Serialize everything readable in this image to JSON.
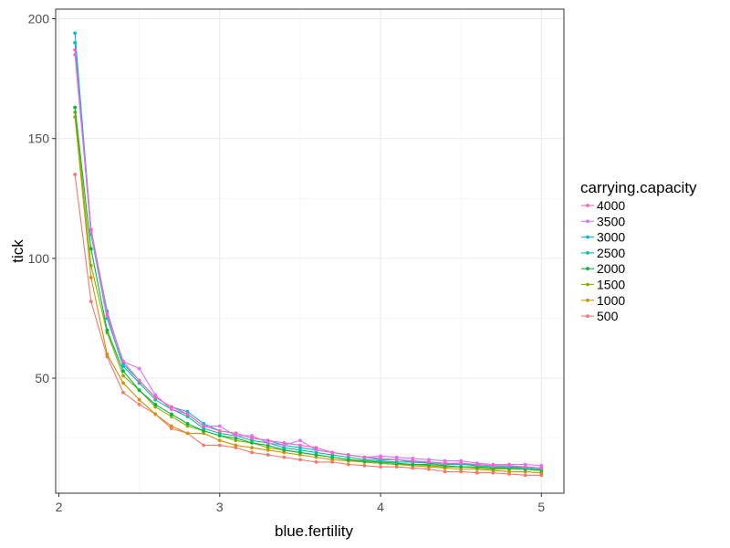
{
  "chart_data": {
    "type": "line",
    "xlabel": "blue.fertility",
    "ylabel": "tick",
    "xlim": [
      1.98,
      5.14
    ],
    "ylim": [
      2,
      204
    ],
    "x_ticks": [
      2,
      3,
      4,
      5
    ],
    "x_tick_labels": [
      "2",
      "3",
      "4",
      "5"
    ],
    "y_ticks": [
      50,
      100,
      150,
      200
    ],
    "y_tick_labels": [
      "50",
      "100",
      "150",
      "200"
    ],
    "grid": true,
    "legend_title": "carrying.capacity",
    "legend_position": "right",
    "x": [
      2.1,
      2.2,
      2.3,
      2.4,
      2.5,
      2.6,
      2.7,
      2.8,
      2.9,
      3.0,
      3.1,
      3.2,
      3.3,
      3.4,
      3.5,
      3.6,
      3.7,
      3.8,
      3.9,
      4.0,
      4.1,
      4.2,
      4.3,
      4.4,
      4.5,
      4.6,
      4.7,
      4.8,
      4.9,
      5.0
    ],
    "series": [
      {
        "name": "4000",
        "color": "#FF61C3",
        "values": [
          187,
          112,
          77,
          57,
          49,
          42,
          38,
          35,
          30,
          28,
          27,
          25,
          24,
          23,
          22,
          21,
          19,
          18,
          17,
          16.5,
          16,
          15.5,
          15,
          14.5,
          14.5,
          14,
          13.5,
          13.5,
          13,
          12.5
        ]
      },
      {
        "name": "3500",
        "color": "#DB72FB",
        "values": [
          185,
          111,
          76,
          57,
          54,
          43,
          37,
          35,
          30,
          30,
          26,
          26,
          23,
          22,
          24,
          20,
          19,
          18,
          17,
          17.5,
          17,
          16.5,
          16,
          15.5,
          15.5,
          14.5,
          14,
          14,
          14,
          13.5
        ]
      },
      {
        "name": "3000",
        "color": "#00B9E3",
        "values": [
          194,
          112,
          78,
          56,
          49,
          42,
          38,
          36,
          31,
          28,
          27,
          25,
          24,
          22,
          21,
          20,
          19,
          18,
          17,
          16,
          16,
          15,
          15,
          14.5,
          14,
          14,
          13.5,
          13,
          13,
          12.5
        ]
      },
      {
        "name": "2500",
        "color": "#00C19F",
        "values": [
          190,
          110,
          75,
          55,
          48,
          41,
          37,
          34,
          29,
          27,
          26,
          24,
          23,
          21,
          20,
          19,
          18,
          17,
          16,
          15.5,
          15,
          15,
          14.5,
          14,
          14,
          13.5,
          13,
          13,
          12.5,
          12
        ]
      },
      {
        "name": "2000",
        "color": "#00BA38",
        "values": [
          163,
          104,
          70,
          53,
          45,
          39,
          35,
          31,
          28,
          26,
          25,
          23,
          22,
          20,
          19,
          18,
          17,
          16,
          15.5,
          15,
          14.5,
          14,
          14,
          13.5,
          13,
          13,
          12.5,
          12.5,
          12,
          11.5
        ]
      },
      {
        "name": "1500",
        "color": "#93AA00",
        "values": [
          161,
          97,
          69,
          51,
          45,
          38,
          34,
          30,
          28,
          26,
          24,
          23,
          21,
          20,
          19,
          18,
          17,
          16,
          15,
          14.5,
          14,
          14,
          13.5,
          13,
          13,
          12.5,
          12,
          12,
          12,
          11.5
        ]
      },
      {
        "name": "1000",
        "color": "#D39200",
        "values": [
          159,
          92,
          60,
          48,
          41,
          35,
          30,
          27,
          27,
          24,
          22,
          21,
          20,
          19,
          18,
          17,
          16,
          15.5,
          15,
          14.5,
          14,
          13.5,
          13,
          12.5,
          12,
          12,
          11.5,
          11,
          11,
          10.5
        ]
      },
      {
        "name": "500",
        "color": "#F8766D",
        "values": [
          135,
          82,
          59,
          44,
          39,
          35,
          29,
          27,
          22,
          22,
          21,
          19,
          18,
          17,
          16,
          15,
          15,
          14,
          13.5,
          13,
          13,
          12.5,
          12,
          11,
          11,
          10.5,
          10.5,
          10,
          9.5,
          9.5
        ]
      }
    ]
  }
}
